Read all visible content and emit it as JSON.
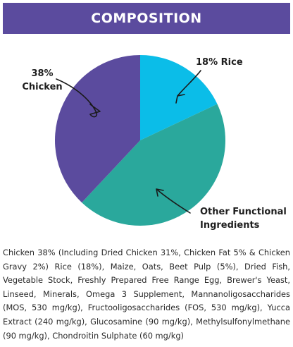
{
  "header": {
    "title": "COMPOSITION"
  },
  "colors": {
    "header_bg": "#5b4b9e",
    "chicken": "#5b4b9e",
    "rice": "#0bbde8",
    "other": "#2aa89c"
  },
  "chart_data": {
    "type": "pie",
    "slices": [
      {
        "label_lines": [
          "18% Rice"
        ],
        "value": 18,
        "color": "#0bbde8"
      },
      {
        "label_lines": [
          "Other Functional",
          "Ingredients"
        ],
        "value": 44,
        "color": "#2aa89c"
      },
      {
        "label_lines": [
          "38%",
          "Chicken"
        ],
        "value": 38,
        "color": "#5b4b9e"
      }
    ]
  },
  "composition_text": "Chicken 38% (Including Dried Chicken 31%, Chicken Fat 5% & Chicken Gravy 2%) Rice (18%), Maize, Oats, Beet Pulp (5%), Dried Fish, Vegetable Stock, Freshly Prepared Free Range Egg, Brewer's Yeast, Linseed, Minerals, Omega 3 Supplement, Mannanoligosaccharides (MOS, 530 mg/kg), Fructooligosaccharides (FOS, 530 mg/kg), Yucca Extract (240 mg/kg), Glucosamine (90 mg/kg), Methylsulfonylmethane (90 mg/kg), Chondroitin Sulphate (60 mg/kg)"
}
